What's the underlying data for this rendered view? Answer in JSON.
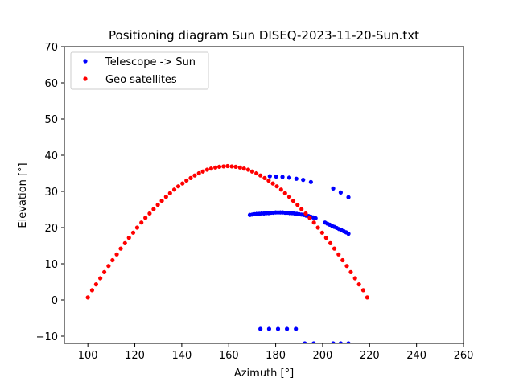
{
  "chart_data": {
    "type": "scatter",
    "title": "Positioning diagram Sun DISEQ-2023-11-20-Sun.txt",
    "xlabel": "Azimuth [°]",
    "ylabel": "Elevation [°]",
    "xlim": [
      90,
      260
    ],
    "ylim": [
      -12,
      70
    ],
    "xticks": [
      100,
      120,
      140,
      160,
      180,
      200,
      220,
      240,
      260
    ],
    "yticks": [
      -10,
      0,
      10,
      20,
      30,
      40,
      50,
      60,
      70
    ],
    "grid": false,
    "legend_position": "top-left",
    "series": [
      {
        "name": "Telescope -> Sun",
        "color": "#0000ff",
        "points": [
          [
            177.5,
            34.2
          ],
          [
            180.2,
            34.1
          ],
          [
            182.9,
            34.0
          ],
          [
            185.8,
            33.8
          ],
          [
            188.8,
            33.5
          ],
          [
            191.7,
            33.2
          ],
          [
            195.0,
            32.6
          ],
          [
            204.5,
            30.8
          ],
          [
            207.7,
            29.7
          ],
          [
            211.0,
            28.4
          ],
          [
            169.0,
            23.5
          ],
          [
            170.0,
            23.6
          ],
          [
            171.0,
            23.7
          ],
          [
            172.0,
            23.8
          ],
          [
            173.0,
            23.8
          ],
          [
            174.0,
            23.9
          ],
          [
            175.0,
            23.9
          ],
          [
            176.0,
            24.0
          ],
          [
            177.0,
            24.0
          ],
          [
            178.0,
            24.1
          ],
          [
            179.0,
            24.1
          ],
          [
            180.0,
            24.2
          ],
          [
            181.0,
            24.2
          ],
          [
            182.0,
            24.2
          ],
          [
            183.0,
            24.2
          ],
          [
            184.0,
            24.1
          ],
          [
            185.0,
            24.1
          ],
          [
            186.0,
            24.0
          ],
          [
            187.0,
            24.0
          ],
          [
            188.0,
            23.9
          ],
          [
            189.0,
            23.8
          ],
          [
            190.0,
            23.7
          ],
          [
            191.0,
            23.6
          ],
          [
            192.0,
            23.5
          ],
          [
            193.0,
            23.3
          ],
          [
            194.0,
            23.2
          ],
          [
            195.0,
            23.0
          ],
          [
            196.0,
            22.8
          ],
          [
            197.0,
            22.6
          ],
          [
            201.0,
            21.4
          ],
          [
            202.0,
            21.1
          ],
          [
            203.0,
            20.8
          ],
          [
            204.0,
            20.5
          ],
          [
            205.0,
            20.2
          ],
          [
            206.0,
            19.9
          ],
          [
            207.0,
            19.6
          ],
          [
            208.0,
            19.3
          ],
          [
            209.0,
            19.0
          ],
          [
            210.0,
            18.7
          ],
          [
            211.0,
            18.3
          ],
          [
            173.5,
            -8.0
          ],
          [
            177.2,
            -8.0
          ],
          [
            181.0,
            -8.0
          ],
          [
            184.8,
            -8.0
          ],
          [
            188.6,
            -8.0
          ],
          [
            192.4,
            -12.0
          ],
          [
            196.2,
            -12.0
          ],
          [
            204.5,
            -12.0
          ],
          [
            207.7,
            -12.0
          ],
          [
            211.0,
            -12.0
          ]
        ]
      },
      {
        "name": "Geo satellites",
        "color": "#ff0000",
        "points": [
          [
            100.0,
            0.7
          ],
          [
            101.8,
            2.7
          ],
          [
            103.5,
            4.3
          ],
          [
            105.3,
            6.0
          ],
          [
            107.0,
            7.7
          ],
          [
            108.8,
            9.4
          ],
          [
            110.5,
            11.0
          ],
          [
            112.3,
            12.6
          ],
          [
            114.0,
            14.2
          ],
          [
            115.8,
            15.7
          ],
          [
            117.5,
            17.2
          ],
          [
            119.3,
            18.6
          ],
          [
            121.0,
            20.0
          ],
          [
            122.8,
            21.4
          ],
          [
            124.5,
            22.7
          ],
          [
            126.3,
            23.9
          ],
          [
            128.0,
            25.1
          ],
          [
            129.8,
            26.3
          ],
          [
            131.5,
            27.4
          ],
          [
            133.3,
            28.5
          ],
          [
            135.0,
            29.5
          ],
          [
            136.8,
            30.5
          ],
          [
            138.5,
            31.4
          ],
          [
            140.3,
            32.2
          ],
          [
            142.0,
            33.0
          ],
          [
            143.8,
            33.7
          ],
          [
            145.5,
            34.4
          ],
          [
            147.3,
            35.0
          ],
          [
            149.0,
            35.5
          ],
          [
            150.8,
            36.0
          ],
          [
            152.5,
            36.3
          ],
          [
            154.3,
            36.6
          ],
          [
            156.0,
            36.8
          ],
          [
            157.8,
            36.9
          ],
          [
            159.5,
            37.0
          ],
          [
            161.3,
            36.9
          ],
          [
            163.0,
            36.8
          ],
          [
            164.8,
            36.6
          ],
          [
            166.5,
            36.3
          ],
          [
            168.3,
            36.0
          ],
          [
            170.0,
            35.5
          ],
          [
            171.8,
            35.0
          ],
          [
            173.5,
            34.4
          ],
          [
            175.3,
            33.7
          ],
          [
            177.0,
            33.0
          ],
          [
            178.8,
            32.2
          ],
          [
            180.5,
            31.4
          ],
          [
            182.3,
            30.5
          ],
          [
            184.0,
            29.5
          ],
          [
            185.8,
            28.5
          ],
          [
            187.5,
            27.4
          ],
          [
            189.3,
            26.3
          ],
          [
            191.0,
            25.1
          ],
          [
            192.8,
            23.9
          ],
          [
            194.5,
            22.7
          ],
          [
            196.3,
            21.4
          ],
          [
            198.0,
            20.0
          ],
          [
            199.8,
            18.6
          ],
          [
            201.5,
            17.2
          ],
          [
            203.3,
            15.7
          ],
          [
            205.0,
            14.2
          ],
          [
            206.8,
            12.6
          ],
          [
            208.5,
            11.0
          ],
          [
            210.3,
            9.4
          ],
          [
            212.0,
            7.7
          ],
          [
            213.8,
            6.0
          ],
          [
            215.5,
            4.3
          ],
          [
            217.3,
            2.7
          ],
          [
            219.0,
            0.7
          ]
        ]
      }
    ]
  }
}
